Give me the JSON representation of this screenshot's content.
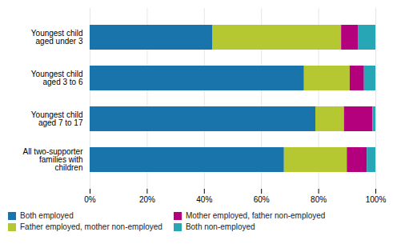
{
  "chart_data": {
    "type": "bar",
    "orientation": "horizontal",
    "stacked": true,
    "categories": [
      "Youngest child\naged under 3",
      "Youngest child\naged 3 to 6",
      "Youngest child\naged 7 to 17",
      "All two-supporter\nfamilies with\nchildren"
    ],
    "series": [
      {
        "name": "Both employed",
        "color": "#1874aa",
        "values": [
          43,
          75,
          79,
          68
        ]
      },
      {
        "name": "Father employed, mother non-employed",
        "color": "#b5c832",
        "values": [
          45,
          16,
          10,
          22
        ]
      },
      {
        "name": "Mother employed, father non-employed",
        "color": "#b5007d",
        "values": [
          6,
          5,
          10,
          7
        ]
      },
      {
        "name": "Both non-employed",
        "color": "#27a7b5",
        "values": [
          6,
          4,
          1,
          3
        ]
      }
    ],
    "xlim": [
      0,
      100
    ],
    "xticks": [
      {
        "value": 0,
        "label": "0%"
      },
      {
        "value": 20,
        "label": "20%"
      },
      {
        "value": 40,
        "label": "40%"
      },
      {
        "value": 60,
        "label": "60%"
      },
      {
        "value": 80,
        "label": "80%"
      },
      {
        "value": 100,
        "label": "100%"
      }
    ],
    "grid": true,
    "legend": "bottom"
  }
}
